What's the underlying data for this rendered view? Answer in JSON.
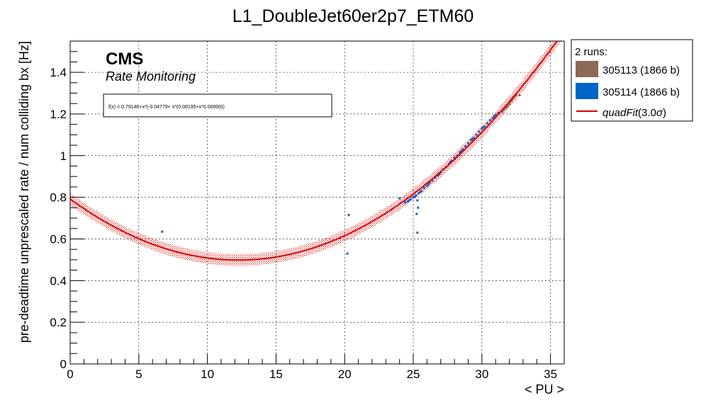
{
  "chart_data": {
    "type": "scatter",
    "title": "L1_DoubleJet60er2p7_ETM60",
    "xlabel": "< PU >",
    "ylabel": "pre-deadtime unprescaled rate / num colliding bx [Hz]",
    "xlim": [
      0,
      36
    ],
    "ylim": [
      0,
      1.55
    ],
    "x_ticks": [
      0,
      5,
      10,
      15,
      20,
      25,
      30,
      35
    ],
    "y_ticks": [
      0,
      0.2,
      0.4,
      0.6,
      0.8,
      1,
      1.2,
      1.4
    ],
    "x_tick_labels": [
      "0",
      "5",
      "10",
      "15",
      "20",
      "25",
      "30",
      "35"
    ],
    "y_tick_labels": [
      "0",
      "0.2",
      "0.4",
      "0.6",
      "0.8",
      "1",
      "1.2",
      "1.4"
    ],
    "grid": true,
    "legend_position": "outside-right",
    "legend_header": "2 runs:",
    "annotations": {
      "experiment": "CMS",
      "subtitle": "Rate Monitoring",
      "formula": "f(x) = 0.79146+x*(-0.04779+ x*(0.00195+x*0.00000))"
    },
    "fit": {
      "name": "quadFit",
      "legend_label": "quadFit",
      "legend_suffix": "(3.0",
      "legend_sigma": "σ",
      "legend_close": ")",
      "coefficients": [
        0.79146,
        -0.04779,
        0.00195,
        0.0
      ],
      "band_halfwidth": 0.028,
      "color": "#dd0000"
    },
    "series": [
      {
        "name": "305113 (1866 b)",
        "color": "#8b6a55",
        "points": [
          [
            31.6,
            1.22
          ],
          [
            31.7,
            1.23
          ],
          [
            31.8,
            1.24
          ],
          [
            31.85,
            1.235
          ],
          [
            31.9,
            1.245
          ],
          [
            31.95,
            1.25
          ],
          [
            32.0,
            1.255
          ],
          [
            32.05,
            1.26
          ],
          [
            32.1,
            1.265
          ],
          [
            32.15,
            1.262
          ],
          [
            32.2,
            1.27
          ],
          [
            32.25,
            1.275
          ],
          [
            32.3,
            1.28
          ],
          [
            32.4,
            1.285
          ],
          [
            32.5,
            1.29
          ],
          [
            32.75,
            1.29
          ],
          [
            31.5,
            1.21
          ],
          [
            31.75,
            1.228
          ],
          [
            32.02,
            1.248
          ],
          [
            32.18,
            1.268
          ]
        ]
      },
      {
        "name": "305114 (1866 b)",
        "color": "#0064c8",
        "points": [
          [
            6.7,
            0.635
          ],
          [
            20.2,
            0.53
          ],
          [
            20.3,
            0.715
          ],
          [
            24.0,
            0.795
          ],
          [
            24.4,
            0.775
          ],
          [
            24.6,
            0.78
          ],
          [
            24.8,
            0.79
          ],
          [
            25.0,
            0.8
          ],
          [
            25.2,
            0.81
          ],
          [
            25.3,
            0.785
          ],
          [
            25.3,
            0.63
          ],
          [
            25.25,
            0.72
          ],
          [
            25.35,
            0.75
          ],
          [
            25.4,
            0.82
          ],
          [
            25.6,
            0.83
          ],
          [
            25.8,
            0.845
          ],
          [
            26.0,
            0.855
          ],
          [
            26.2,
            0.87
          ],
          [
            26.4,
            0.88
          ],
          [
            26.6,
            0.895
          ],
          [
            26.8,
            0.905
          ],
          [
            27.0,
            0.92
          ],
          [
            27.2,
            0.935
          ],
          [
            27.4,
            0.945
          ],
          [
            27.6,
            0.96
          ],
          [
            27.8,
            0.975
          ],
          [
            28.0,
            0.99
          ],
          [
            28.2,
            1.0
          ],
          [
            28.4,
            1.015
          ],
          [
            28.6,
            1.03
          ],
          [
            28.8,
            1.045
          ],
          [
            29.0,
            1.06
          ],
          [
            29.2,
            1.075
          ],
          [
            29.4,
            1.085
          ],
          [
            29.6,
            1.1
          ],
          [
            29.8,
            1.115
          ],
          [
            30.0,
            1.13
          ],
          [
            30.2,
            1.14
          ],
          [
            30.4,
            1.155
          ],
          [
            30.6,
            1.17
          ],
          [
            30.8,
            1.18
          ],
          [
            31.0,
            1.195
          ],
          [
            31.2,
            1.205
          ],
          [
            24.7,
            0.785
          ],
          [
            25.1,
            0.803
          ],
          [
            25.5,
            0.825
          ],
          [
            26.1,
            0.862
          ],
          [
            26.9,
            0.912
          ],
          [
            27.7,
            0.968
          ],
          [
            28.5,
            1.022
          ],
          [
            29.3,
            1.08
          ],
          [
            30.1,
            1.135
          ],
          [
            30.9,
            1.188
          ]
        ]
      }
    ]
  }
}
